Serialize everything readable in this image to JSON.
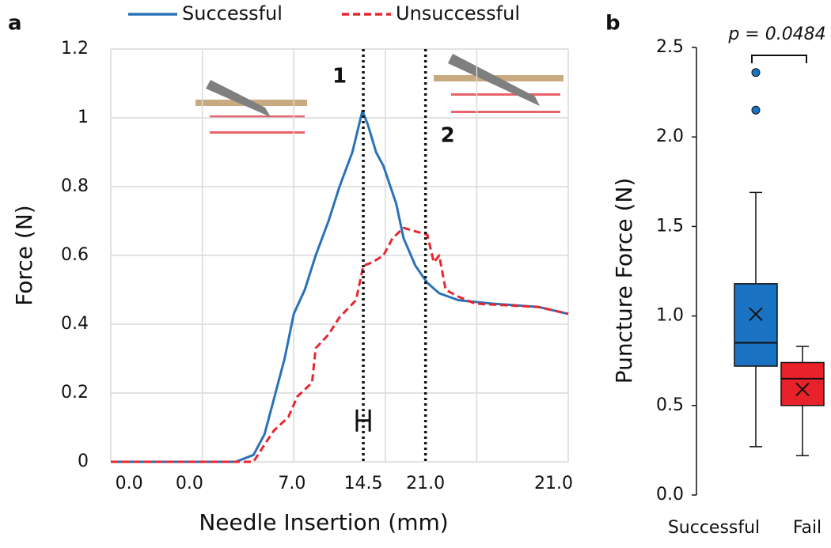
{
  "chart_data": [
    {
      "type": "line",
      "panel_label": "a",
      "xlabel": "Needle Insertion (mm)",
      "ylabel": "Force (N)",
      "xlim": [
        0,
        25
      ],
      "ylim": [
        0,
        1.2
      ],
      "xgrid": [
        0,
        5,
        10,
        15,
        20,
        25
      ],
      "xticks": [
        {
          "value": 1.0,
          "label": "0.0"
        },
        {
          "value": 4.3,
          "label": "0.0"
        },
        {
          "value": 9.9,
          "label": "7.0"
        },
        {
          "value": 13.8,
          "label": "14.5"
        },
        {
          "value": 17.2,
          "label": "21.0"
        },
        {
          "value": 24.2,
          "label": "21.0"
        }
      ],
      "yticks": [
        0,
        0.2,
        0.4,
        0.6,
        0.8,
        1,
        1.2
      ],
      "grid": true,
      "legend": "top",
      "series": [
        {
          "name": "Successful",
          "color": "#2a72b8",
          "style": "solid",
          "x": [
            0,
            6.83,
            7.8,
            8.4,
            8.9,
            9.5,
            10.0,
            10.6,
            11.2,
            11.9,
            12.5,
            13.2,
            13.75,
            14.05,
            14.5,
            14.9,
            15.6,
            16.0,
            16.65,
            17.3,
            17.95,
            19.0,
            20.8,
            23.4,
            25
          ],
          "values": [
            0,
            0,
            0.02,
            0.08,
            0.18,
            0.3,
            0.43,
            0.5,
            0.6,
            0.7,
            0.8,
            0.9,
            1.02,
            0.98,
            0.9,
            0.86,
            0.75,
            0.65,
            0.57,
            0.52,
            0.49,
            0.47,
            0.46,
            0.45,
            0.43
          ]
        },
        {
          "name": "Unsuccessful",
          "color": "#e8262d",
          "style": "dashed",
          "x": [
            0,
            7.8,
            8.4,
            8.9,
            9.7,
            10.2,
            11.0,
            11.2,
            11.9,
            12.5,
            13.4,
            13.8,
            14.3,
            14.9,
            15.4,
            16.0,
            16.65,
            17.3,
            17.65,
            17.95,
            18.3,
            19.0,
            19.9,
            23.4,
            25
          ],
          "values": [
            0,
            0,
            0.05,
            0.09,
            0.13,
            0.19,
            0.23,
            0.33,
            0.37,
            0.42,
            0.47,
            0.57,
            0.58,
            0.6,
            0.65,
            0.68,
            0.67,
            0.66,
            0.58,
            0.6,
            0.5,
            0.48,
            0.46,
            0.45,
            0.43
          ]
        }
      ],
      "markers": [
        {
          "x": 13.8,
          "label": "1"
        },
        {
          "x": 17.2,
          "label": "2"
        }
      ],
      "error_bar": {
        "x": 13.8,
        "y": 0.12,
        "xerr": 0.35
      }
    },
    {
      "type": "box",
      "panel_label": "b",
      "ylabel": "Puncture Force (N)",
      "ylim": [
        0,
        2.5
      ],
      "yticks": [
        {
          "value": 0,
          "label": "0.0"
        },
        {
          "value": 0.5,
          "label": "0.5"
        },
        {
          "value": 1,
          "label": "1.0"
        },
        {
          "value": 1.5,
          "label": "1.5"
        },
        {
          "value": 2,
          "label": "2.0"
        },
        {
          "value": 2.5,
          "label": "2.5"
        }
      ],
      "categories": [
        "Successful",
        "Fail"
      ],
      "boxes": [
        {
          "color": "#1a73c2",
          "whislo": 0.27,
          "q1": 0.72,
          "med": 0.85,
          "q3": 1.18,
          "whishi": 1.69,
          "mean": 1.01,
          "fliers": [
            2.15,
            2.36
          ]
        },
        {
          "color": "#e8212a",
          "whislo": 0.22,
          "q1": 0.5,
          "med": 0.65,
          "q3": 0.74,
          "whishi": 0.83,
          "mean": 0.59,
          "fliers": []
        }
      ],
      "annotation": "p = 0.0484"
    }
  ]
}
